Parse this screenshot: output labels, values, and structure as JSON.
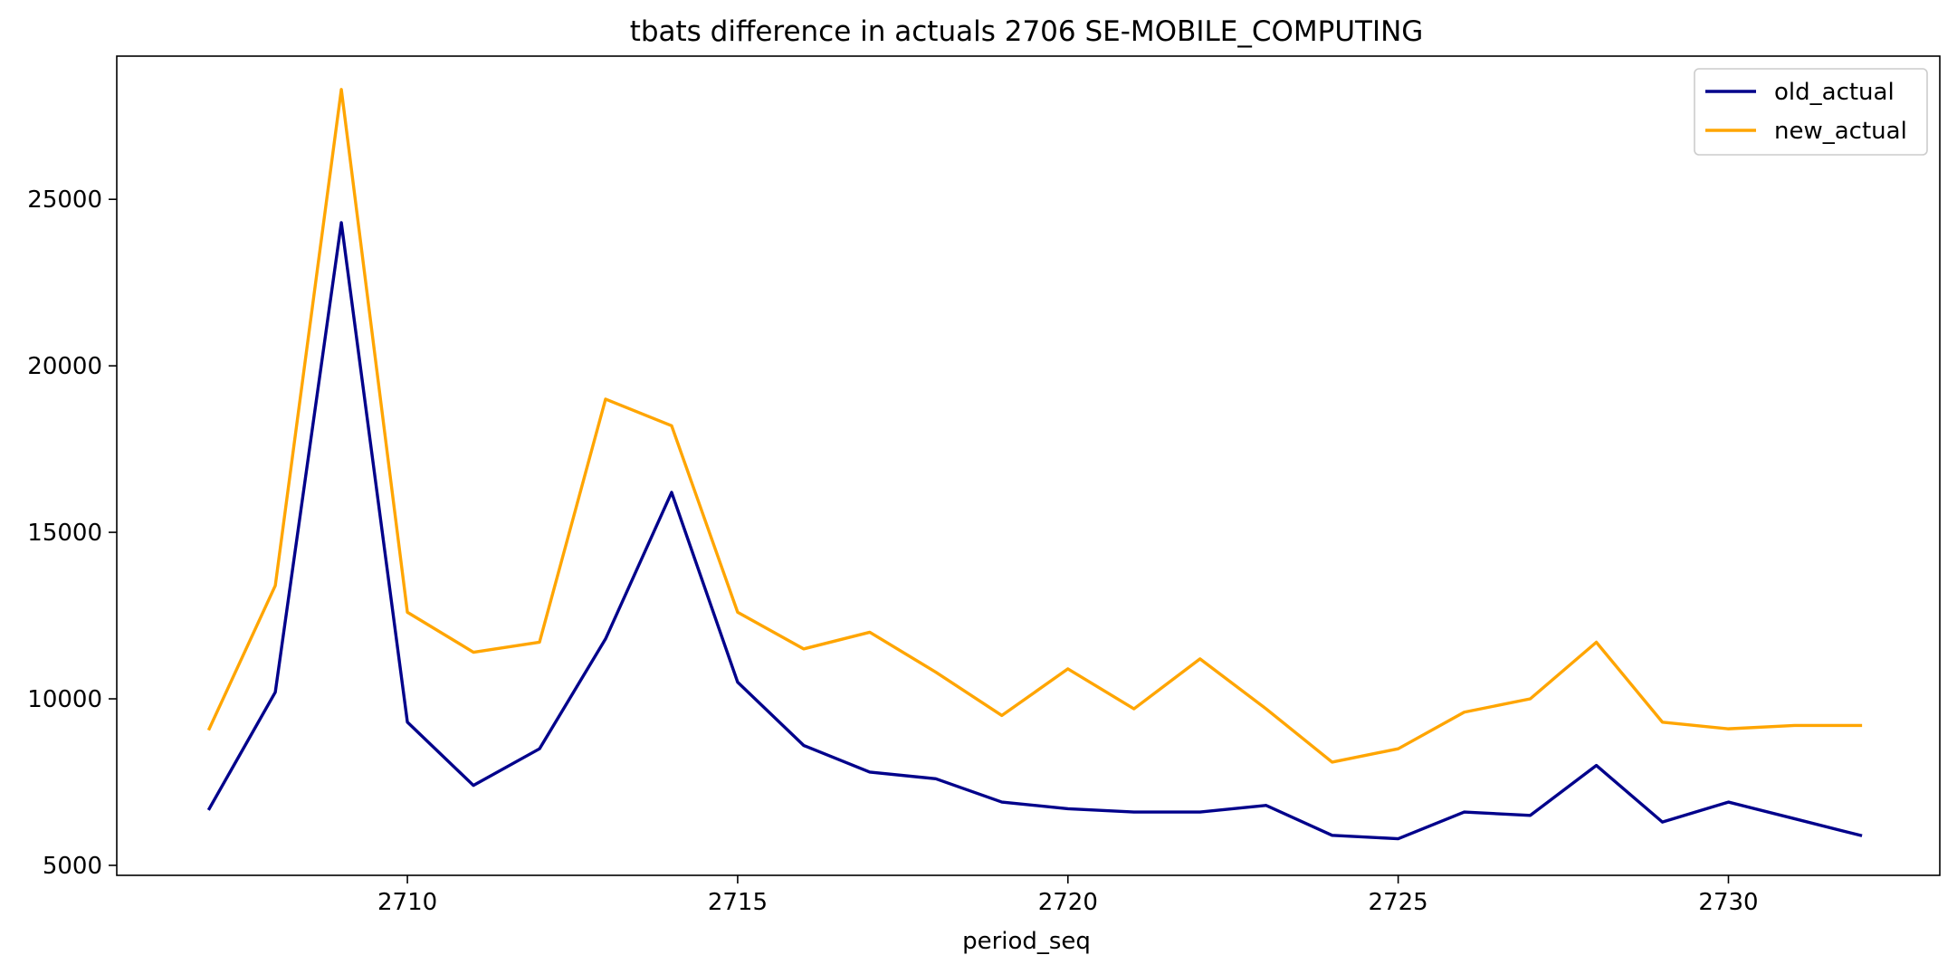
{
  "chart_data": {
    "type": "line",
    "title": "tbats difference in actuals 2706 SE-MOBILE_COMPUTING",
    "xlabel": "period_seq",
    "ylabel": "",
    "x": [
      2707,
      2708,
      2709,
      2710,
      2711,
      2712,
      2713,
      2714,
      2715,
      2716,
      2717,
      2718,
      2719,
      2720,
      2721,
      2722,
      2723,
      2724,
      2725,
      2726,
      2727,
      2728,
      2729,
      2730,
      2731,
      2732
    ],
    "xlim": [
      2705.6,
      2733.2
    ],
    "ylim": [
      4700,
      29300
    ],
    "xticks": [
      2710,
      2715,
      2720,
      2725,
      2730
    ],
    "yticks": [
      5000,
      10000,
      15000,
      20000,
      25000
    ],
    "series": [
      {
        "name": "old_actual",
        "color": "#00008b",
        "values": [
          6700,
          10200,
          24300,
          9300,
          7400,
          8500,
          11800,
          16200,
          10500,
          8600,
          7800,
          7600,
          6900,
          6700,
          6600,
          6600,
          6800,
          5900,
          5800,
          6600,
          6500,
          8000,
          6300,
          6900,
          6400,
          5900
        ]
      },
      {
        "name": "new_actual",
        "color": "#ffa500",
        "values": [
          9100,
          13400,
          28300,
          12600,
          11400,
          11700,
          19000,
          18200,
          12600,
          11500,
          12000,
          10800,
          9500,
          10900,
          9700,
          11200,
          9700,
          8100,
          8500,
          9600,
          10000,
          11700,
          9300,
          9100,
          9200,
          9200
        ]
      }
    ],
    "grid": false,
    "legend_position": "top-right"
  }
}
